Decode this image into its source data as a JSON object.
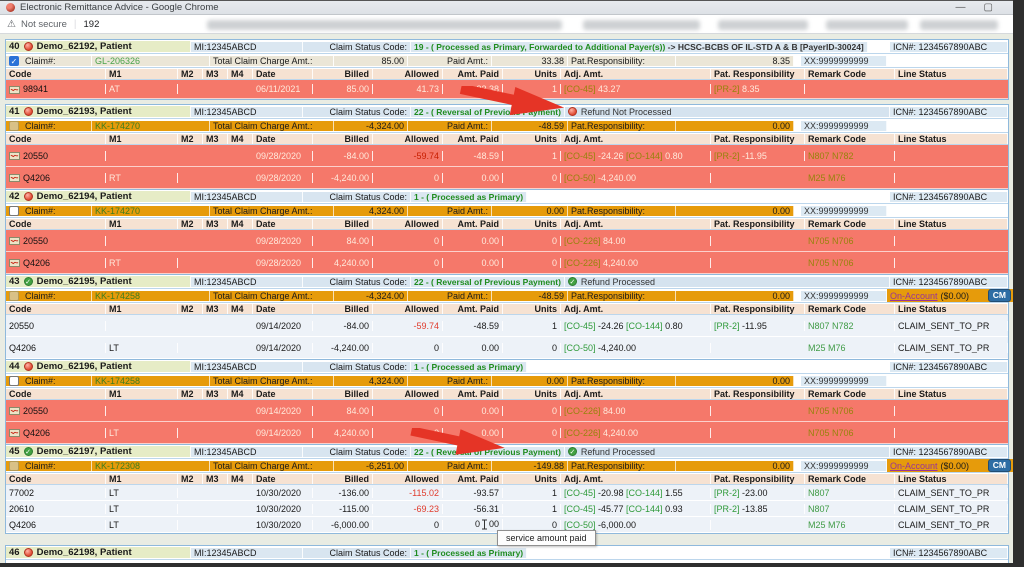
{
  "window": {
    "title": "Electronic Remittance Advice - Google Chrome",
    "minimize": "—",
    "maximize": "▢"
  },
  "address_bar": {
    "warning_glyph": "⚠",
    "security_label": "Not secure",
    "separator": "|",
    "url_visible": "192"
  },
  "icons": {
    "check": "✓"
  },
  "colors": {
    "orange_row": "#e69b0b",
    "salmon_row": "#f5786a",
    "status_green": "#1f8c1f",
    "arrow_red": "#e53426",
    "cm_blue": "#2e6da4"
  },
  "shared": {
    "mi": "MI:12345ABCD",
    "claim_status_label": "Claim Status Code:",
    "icn": "ICN#: 1234567890ABC",
    "claim_no_label": "Claim#:",
    "total_charge_label": "Total Claim Charge Amt.:",
    "paid_amt_label": "Paid Amt.:",
    "pat_resp_label": "Pat.Responsibility:",
    "xx": "XX:9999999999",
    "on_account_label": "On-Account",
    "on_account_value": "($0.00)",
    "cm_button": "CM",
    "columns": [
      "Code",
      "M1",
      "M2",
      "M3",
      "M4",
      "Date",
      "Billed",
      "Allowed",
      "Amt. Paid",
      "Units",
      "Adj. Amt.",
      "Pat. Responsibility",
      "Remark Code",
      "Line Status"
    ]
  },
  "tooltip": "service amount paid",
  "claims": [
    {
      "num": "40",
      "icon": "red",
      "patient": "Demo_62192, Patient",
      "status": "19 - ( Processed as Primary, Forwarded to Additional Payer(s))",
      "status_suffix": "-> HCSC-BCBS OF IL-STD A & B [PayerID-30024]",
      "row2": "cream",
      "checked": true,
      "claim_id": "GL-206326",
      "total": "85.00",
      "paid": "33.38",
      "presp": "8.35",
      "row_style": "red",
      "details": [
        {
          "icon": true,
          "code": "98941",
          "m1": "AT",
          "date": "06/11/2021",
          "billed": "85.00",
          "allowed": "41.73",
          "paid": "33.38",
          "units": "1",
          "adj": [
            {
              "c": "CO-45",
              "v": "43.27"
            }
          ],
          "pr": {
            "c": "PR-2",
            "v": "8.35"
          },
          "remark": "",
          "line": ""
        }
      ]
    },
    {
      "num": "41",
      "icon": "red",
      "patient": "Demo_62193, Patient",
      "status": "22 - ( Reversal of Previous Payment)",
      "refund": {
        "icon": "red",
        "text": "Refund Not Processed"
      },
      "arrow": true,
      "row2": "orange",
      "checkbox_style": "tan",
      "claim_id": "KK-174270",
      "total": "-4,324.00",
      "paid": "-48.59",
      "presp": "0.00",
      "row_style": "red",
      "details": [
        {
          "icon": true,
          "code": "20550",
          "m1": "",
          "date": "09/28/2020",
          "billed": "-84.00",
          "allowed": "-59.74",
          "allowed_neg": true,
          "paid": "-48.59",
          "units": "1",
          "adj": [
            {
              "c": "CO-45",
              "v": "-24.26"
            },
            {
              "c": "CO-144",
              "v": "0.80"
            }
          ],
          "pr": {
            "c": "PR-2",
            "v": "-11.95"
          },
          "remark": "N807 N782",
          "line": ""
        },
        {
          "icon": true,
          "code": "Q4206",
          "m1": "RT",
          "date": "09/28/2020",
          "billed": "-4,240.00",
          "allowed": "0",
          "paid": "0.00",
          "units": "0",
          "adj": [
            {
              "c": "CO-50",
              "v": "-4,240.00"
            }
          ],
          "remark": "M25 M76",
          "line": ""
        }
      ]
    },
    {
      "num": "42",
      "icon": "red",
      "patient": "Demo_62194, Patient",
      "status": "1 - ( Processed as Primary)",
      "row2": "orange",
      "checkbox_style": "white",
      "claim_id": "KK-174270",
      "total": "4,324.00",
      "paid": "0.00",
      "presp": "0.00",
      "row_style": "red",
      "details": [
        {
          "icon": true,
          "code": "20550",
          "m1": "",
          "date": "09/28/2020",
          "billed": "84.00",
          "allowed": "0",
          "paid": "0.00",
          "units": "0",
          "adj": [
            {
              "c": "CO-226",
              "v": "84.00"
            }
          ],
          "remark": "N705 N706",
          "line": ""
        },
        {
          "icon": true,
          "code": "Q4206",
          "m1": "RT",
          "date": "09/28/2020",
          "billed": "4,240.00",
          "allowed": "0",
          "paid": "0.00",
          "units": "0",
          "adj": [
            {
              "c": "CO-226",
              "v": "4,240.00"
            }
          ],
          "remark": "N705 N706",
          "line": ""
        }
      ]
    },
    {
      "num": "43",
      "icon": "green",
      "patient": "Demo_62195, Patient",
      "status": "22 - ( Reversal of Previous Payment)",
      "refund": {
        "icon": "green",
        "text": "Refund Processed"
      },
      "row2": "orange",
      "checkbox_style": "tan",
      "claim_id": "KK-174258",
      "total": "-4,324.00",
      "paid": "-48.59",
      "presp": "0.00",
      "on_account": true,
      "row_style": "white",
      "details": [
        {
          "code": "20550",
          "m1": "",
          "date": "09/14/2020",
          "billed": "-84.00",
          "allowed": "-59.74",
          "allowed_neg": true,
          "paid": "-48.59",
          "units": "1",
          "adj": [
            {
              "c": "CO-45",
              "v": "-24.26"
            },
            {
              "c": "CO-144",
              "v": "0.80"
            }
          ],
          "pr": {
            "c": "PR-2",
            "v": "-11.95"
          },
          "remark": "N807 N782",
          "line": "CLAIM_SENT_TO_PR"
        },
        {
          "code": "Q4206",
          "m1": "LT",
          "date": "09/14/2020",
          "billed": "-4,240.00",
          "allowed": "0",
          "paid": "0.00",
          "units": "0",
          "adj": [
            {
              "c": "CO-50",
              "v": "-4,240.00"
            }
          ],
          "remark": "M25 M76",
          "line": "CLAIM_SENT_TO_PR"
        }
      ]
    },
    {
      "num": "44",
      "icon": "red",
      "patient": "Demo_62196, Patient",
      "status": "1 - ( Processed as Primary)",
      "row2": "orange",
      "checkbox_style": "white",
      "claim_id": "KK-174258",
      "total": "4,324.00",
      "paid": "0.00",
      "presp": "0.00",
      "row_style": "red",
      "details": [
        {
          "icon": true,
          "code": "20550",
          "m1": "",
          "date": "09/14/2020",
          "billed": "84.00",
          "allowed": "0",
          "paid": "0.00",
          "units": "0",
          "adj": [
            {
              "c": "CO-226",
              "v": "84.00"
            }
          ],
          "remark": "N705 N706",
          "line": ""
        },
        {
          "icon": true,
          "code": "Q4206",
          "m1": "LT",
          "date": "09/14/2020",
          "billed": "4,240.00",
          "allowed": "0",
          "paid": "0.00",
          "units": "0",
          "adj": [
            {
              "c": "CO-226",
              "v": "4,240.00"
            }
          ],
          "remark": "N705 N706",
          "line": ""
        }
      ]
    },
    {
      "num": "45",
      "icon": "green",
      "patient": "Demo_62197, Patient",
      "status": "22 - ( Reversal of Previous Payment)",
      "refund": {
        "icon": "green",
        "text": "Refund Processed"
      },
      "arrow": true,
      "row2": "orange",
      "checkbox_style": "tan",
      "claim_id": "KK-172308",
      "total": "-6,251.00",
      "paid": "-149.88",
      "presp": "0.00",
      "on_account": true,
      "row_style": "white",
      "details": [
        {
          "code": "77002",
          "m1": "LT",
          "date": "10/30/2020",
          "billed": "-136.00",
          "allowed": "-115.02",
          "allowed_neg": true,
          "paid": "-93.57",
          "units": "1",
          "adj": [
            {
              "c": "CO-45",
              "v": "-20.98"
            },
            {
              "c": "CO-144",
              "v": "1.55"
            }
          ],
          "pr": {
            "c": "PR-2",
            "v": "-23.00"
          },
          "remark": "N807",
          "line": "CLAIM_SENT_TO_PR"
        },
        {
          "code": "20610",
          "m1": "LT",
          "date": "10/30/2020",
          "billed": "-115.00",
          "allowed": "-69.23",
          "allowed_neg": true,
          "paid": "-56.31",
          "units": "1",
          "adj": [
            {
              "c": "CO-45",
              "v": "-45.77"
            },
            {
              "c": "CO-144",
              "v": "0.93"
            }
          ],
          "pr": {
            "c": "PR-2",
            "v": "-13.85"
          },
          "remark": "N807",
          "line": "CLAIM_SENT_TO_PR"
        },
        {
          "code": "Q4206",
          "m1": "LT",
          "date": "10/30/2020",
          "billed": "-6,000.00",
          "allowed": "0",
          "paid": "0.00",
          "cursor": true,
          "units": "0",
          "adj": [
            {
              "c": "CO-50",
              "v": "-6,000.00"
            }
          ],
          "remark": "M25 M76",
          "line": "CLAIM_SENT_TO_PR"
        }
      ]
    },
    {
      "num": "46",
      "icon": "red",
      "patient": "Demo_62198, Patient",
      "status": "1 - ( Processed as Primary)",
      "row2": "orange",
      "partial": true,
      "details": []
    }
  ]
}
